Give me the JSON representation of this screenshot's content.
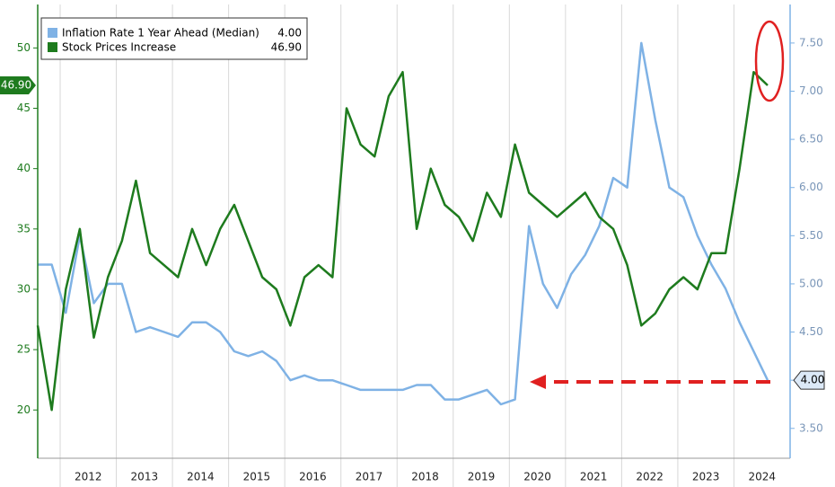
{
  "chart_data": {
    "type": "line",
    "x": [
      2011.6,
      2011.85,
      2012.1,
      2012.35,
      2012.6,
      2012.85,
      2013.1,
      2013.35,
      2013.6,
      2013.85,
      2014.1,
      2014.35,
      2014.6,
      2014.85,
      2015.1,
      2015.35,
      2015.6,
      2015.85,
      2016.1,
      2016.35,
      2016.6,
      2016.85,
      2017.1,
      2017.35,
      2017.6,
      2017.85,
      2018.1,
      2018.35,
      2018.6,
      2018.85,
      2019.1,
      2019.35,
      2019.6,
      2019.85,
      2020.1,
      2020.35,
      2020.6,
      2020.85,
      2021.1,
      2021.35,
      2021.6,
      2021.85,
      2022.1,
      2022.35,
      2022.6,
      2022.85,
      2023.1,
      2023.35,
      2023.6,
      2023.85,
      2024.1,
      2024.35,
      2024.6
    ],
    "series": [
      {
        "name": "Inflation Rate 1 Year Ahead (Median)",
        "color": "#7fb2e5",
        "axis": "y2",
        "last_label": "4.00",
        "values": [
          5.2,
          5.2,
          4.7,
          5.5,
          4.8,
          5.0,
          5.0,
          4.5,
          4.55,
          4.5,
          4.45,
          4.6,
          4.6,
          4.5,
          4.3,
          4.25,
          4.3,
          4.2,
          4.0,
          4.05,
          4.0,
          4.0,
          3.95,
          3.9,
          3.9,
          3.9,
          3.9,
          3.95,
          3.95,
          3.8,
          3.8,
          3.85,
          3.9,
          3.75,
          3.8,
          5.6,
          5.0,
          4.75,
          5.1,
          5.3,
          5.6,
          6.1,
          6.0,
          7.5,
          6.7,
          6.0,
          5.9,
          5.5,
          5.2,
          4.95,
          4.6,
          4.3,
          4.0
        ]
      },
      {
        "name": "Stock Prices Increase",
        "color": "#1e7b1e",
        "axis": "y",
        "last_label": "46.90",
        "values": [
          27,
          20,
          30,
          35,
          26,
          31,
          34,
          39,
          33,
          32,
          31,
          35,
          32,
          35,
          37,
          34,
          31,
          30,
          27,
          31,
          32,
          31,
          45,
          42,
          41,
          46,
          48,
          35,
          40,
          37,
          36,
          34,
          38,
          36,
          42,
          38,
          37,
          36,
          37,
          38,
          36,
          35,
          32,
          27,
          28,
          30,
          31,
          30,
          33,
          33,
          40,
          48,
          46.9
        ]
      }
    ],
    "xlim": [
      2011.6,
      2025.0
    ],
    "xticks": [
      2012,
      2013,
      2014,
      2015,
      2016,
      2017,
      2018,
      2019,
      2020,
      2021,
      2022,
      2023,
      2024
    ],
    "ylim": [
      16,
      53.6
    ],
    "yticks": [
      20,
      25,
      30,
      35,
      40,
      45,
      50
    ],
    "y2lim": [
      3.19,
      7.9
    ],
    "y2ticks": [
      {
        "value": 3.5,
        "label": "3.50"
      },
      {
        "value": 4,
        "label": "4.00"
      },
      {
        "value": 4.5,
        "label": "4.50"
      },
      {
        "value": 5,
        "label": "5.00"
      },
      {
        "value": 5.5,
        "label": "5.50"
      },
      {
        "value": 6,
        "label": "6.00"
      },
      {
        "value": 6.5,
        "label": "6.50"
      },
      {
        "value": 7,
        "label": "7.00"
      },
      {
        "value": 7.5,
        "label": "7.50"
      }
    ],
    "grid": true
  }
}
